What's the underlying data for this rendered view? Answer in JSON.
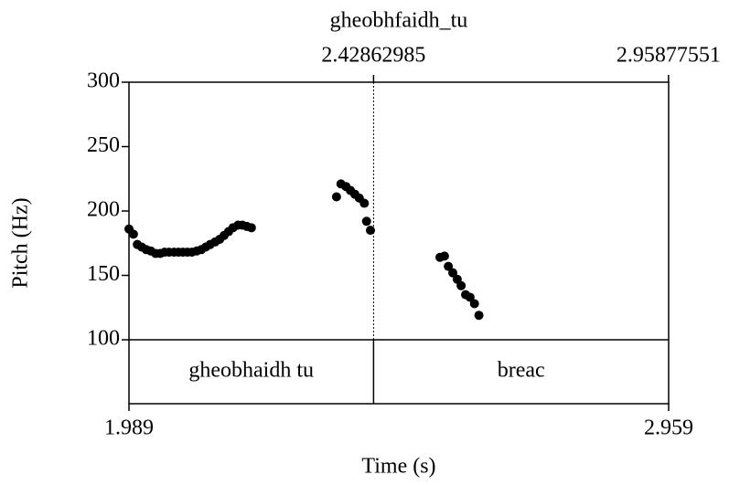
{
  "chart_data": {
    "type": "scatter",
    "title": "gheobhfaidh_tu",
    "xlabel": "Time (s)",
    "ylabel": "Pitch (Hz)",
    "color": "#000000",
    "xlim": [
      1.989,
      2.959
    ],
    "xticks": [
      1.989,
      2.959
    ],
    "top_ticks": [
      2.42862985,
      2.95877551
    ],
    "ylim": [
      100,
      300
    ],
    "yticks": [
      100,
      150,
      200,
      250,
      300
    ],
    "tier": [
      {
        "label": "gheobhaidh tu",
        "xmin": 1.989,
        "xmax": 2.42862985
      },
      {
        "label": "breac",
        "xmin": 2.42862985,
        "xmax": 2.959
      }
    ],
    "x": [
      1.989,
      1.997,
      2.004,
      2.012,
      2.02,
      2.028,
      2.037,
      2.045,
      2.053,
      2.061,
      2.07,
      2.078,
      2.086,
      2.094,
      2.102,
      2.111,
      2.119,
      2.127,
      2.135,
      2.144,
      2.152,
      2.16,
      2.168,
      2.176,
      2.185,
      2.193,
      2.201,
      2.209,
      2.362,
      2.37,
      2.379,
      2.387,
      2.395,
      2.403,
      2.412,
      2.416,
      2.423,
      2.548,
      2.556,
      2.563,
      2.571,
      2.579,
      2.586,
      2.594,
      2.602,
      2.61,
      2.618
    ],
    "values": [
      186,
      182,
      174,
      172,
      170,
      169,
      167,
      167,
      168,
      168,
      168,
      168,
      168,
      168,
      168,
      169,
      170,
      172,
      174,
      176,
      178,
      181,
      184,
      187,
      189,
      189,
      188,
      187,
      211,
      221,
      219,
      216,
      213,
      210,
      206,
      192,
      185,
      164,
      165,
      157,
      152,
      147,
      142,
      135,
      133,
      128,
      119
    ]
  }
}
